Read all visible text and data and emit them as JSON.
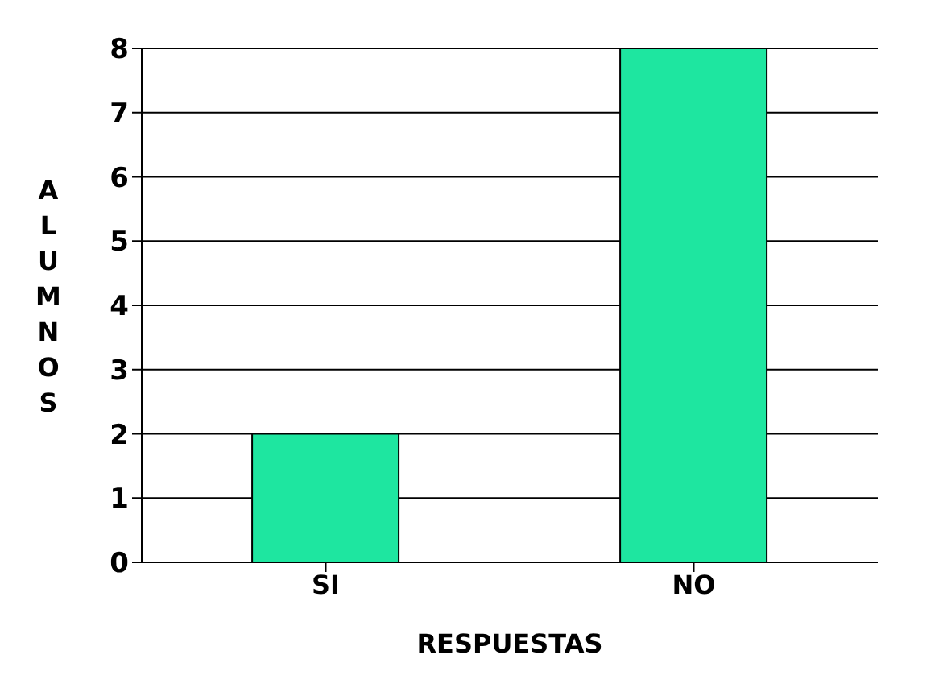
{
  "chart_data": {
    "type": "bar",
    "xlabel": "RESPUESTAS",
    "ylabel": "ALUMNOS",
    "categories": [
      "SI",
      "NO"
    ],
    "values": [
      2,
      8
    ],
    "color": "#1ee6a0",
    "ylim": [
      0,
      8
    ],
    "yticks": [
      0,
      1,
      2,
      3,
      4,
      5,
      6,
      7,
      8
    ],
    "grid": "y"
  }
}
